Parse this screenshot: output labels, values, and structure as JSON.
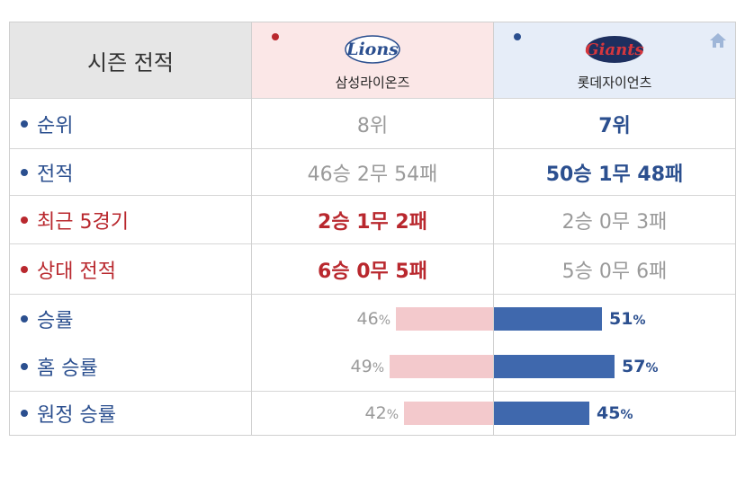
{
  "header": {
    "label": "시즌 전적",
    "home_team": {
      "name": "삼성라이온즈",
      "logo_text": "Lions",
      "color": "#b9282e",
      "bg": "#fbe7e7"
    },
    "away_team": {
      "name": "롯데자이언츠",
      "logo_text": "Giants",
      "color": "#2b4f8f",
      "bg": "#e6edf8",
      "icon": "home-icon"
    }
  },
  "rows": {
    "rank": {
      "label": "순위",
      "home": "8위",
      "away": "7위"
    },
    "record": {
      "label": "전적",
      "home": "46승 2무 54패",
      "away": "50승 1무 48패"
    },
    "recent5": {
      "label": "최근 5경기",
      "home": "2승 1무 2패",
      "away": "2승 0무 3패"
    },
    "h2h": {
      "label": "상대 전적",
      "home": "6승 0무 5패",
      "away": "5승 0무 6패"
    },
    "win_rate": {
      "label": "승률",
      "home_pct": "46",
      "away_pct": "51",
      "unit": "%",
      "home_value": 46,
      "away_value": 51
    },
    "home_win_rate": {
      "label": "홈 승률",
      "home_pct": "49",
      "away_pct": "57",
      "unit": "%",
      "home_value": 49,
      "away_value": 57
    },
    "away_win_rate": {
      "label": "원정 승률",
      "home_pct": "42",
      "away_pct": "45",
      "unit": "%",
      "home_value": 42,
      "away_value": 45
    }
  },
  "colors": {
    "blue": "#2b4f8f",
    "red": "#b9282e",
    "bar_home": "#f3c9cc",
    "bar_away": "#3f68ad"
  }
}
